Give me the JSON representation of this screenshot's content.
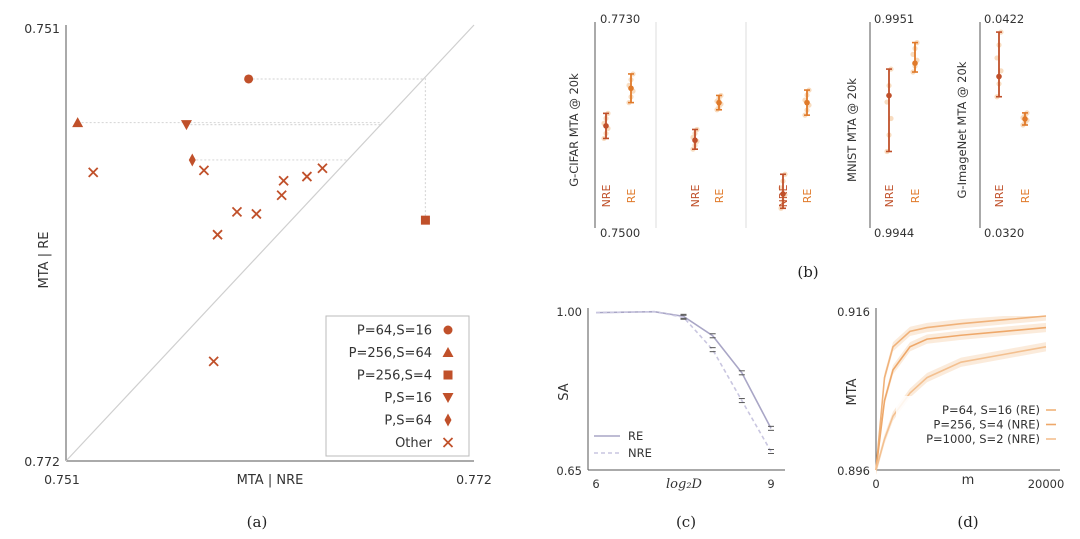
{
  "chart_data": [
    {
      "panel": "(a)",
      "type": "scatter",
      "xlabel": "MTA | NRE",
      "ylabel": "MTA | RE",
      "xlim": [
        0.751,
        0.772
      ],
      "ylim": [
        0.751,
        0.772
      ],
      "x_tick_labels": [
        "0.751",
        "0.772"
      ],
      "y_tick_labels": [
        "0.751",
        "0.772"
      ],
      "legend_position": "bottom-right",
      "series": [
        {
          "name": "P=64,S=16",
          "marker": "circle",
          "points": [
            [
              0.7604,
              0.7694
            ]
          ]
        },
        {
          "name": "P=256,S=64",
          "marker": "triangle-up",
          "points": [
            [
              0.7516,
              0.7673
            ]
          ]
        },
        {
          "name": "P=256,S=4",
          "marker": "square",
          "points": [
            [
              0.7695,
              0.7626
            ]
          ]
        },
        {
          "name": "P,S=16",
          "marker": "triangle-down",
          "points": [
            [
              0.7572,
              0.7672
            ]
          ]
        },
        {
          "name": "P,S=64",
          "marker": "diamond",
          "points": [
            [
              0.7575,
              0.7655
            ]
          ]
        },
        {
          "name": "Other",
          "marker": "x",
          "points": [
            [
              0.7524,
              0.7649
            ],
            [
              0.7581,
              0.765
            ],
            [
              0.7588,
              0.7619
            ],
            [
              0.7598,
              0.763
            ],
            [
              0.7608,
              0.7629
            ],
            [
              0.7621,
              0.7638
            ],
            [
              0.7622,
              0.7645
            ],
            [
              0.7634,
              0.7647
            ],
            [
              0.7642,
              0.7651
            ],
            [
              0.7586,
              0.7558
            ]
          ]
        }
      ],
      "reference_lines": [
        "y = x"
      ],
      "caption": "(a)"
    },
    {
      "panel": "(b)",
      "type": "errorbar",
      "caption": "(b)",
      "subplots": [
        {
          "ylabel": "G-CIFAR MTA @ 20k",
          "y_top_label": "0.7730",
          "y_bottom_label": "0.7500",
          "ylim": [
            0.75,
            0.773
          ],
          "groups": [
            {
              "label": "NRE",
              "mean": 0.7614,
              "low": 0.76,
              "high": 0.7628
            },
            {
              "label": "RE",
              "mean": 0.7656,
              "low": 0.764,
              "high": 0.7672
            },
            {
              "label": "NRE",
              "mean": 0.7598,
              "low": 0.7588,
              "high": 0.761
            },
            {
              "label": "RE",
              "mean": 0.764,
              "low": 0.7632,
              "high": 0.7648
            },
            {
              "label": "NRE",
              "mean": 0.7538,
              "low": 0.7522,
              "high": 0.756
            },
            {
              "label": "RE",
              "mean": 0.764,
              "low": 0.7626,
              "high": 0.7654
            }
          ]
        },
        {
          "ylabel": "MNIST MTA @ 20k",
          "y_top_label": "0.9951",
          "y_bottom_label": "0.9944",
          "ylim": [
            0.9944,
            0.9951
          ],
          "groups": [
            {
              "label": "NRE",
              "mean": 0.99485,
              "low": 0.99466,
              "high": 0.99494
            },
            {
              "label": "RE",
              "mean": 0.99496,
              "low": 0.99493,
              "high": 0.99503
            }
          ]
        },
        {
          "ylabel": "G-ImageNet MTA @ 20k",
          "y_top_label": "0.0422",
          "y_bottom_label": "0.0320",
          "ylim": [
            0.032,
            0.0422
          ],
          "groups": [
            {
              "label": "NRE",
              "mean": 0.0395,
              "low": 0.0385,
              "high": 0.0417
            },
            {
              "label": "RE",
              "mean": 0.0374,
              "low": 0.0371,
              "high": 0.0377
            }
          ]
        }
      ]
    },
    {
      "panel": "(c)",
      "type": "line",
      "xlabel": "log₂D",
      "ylabel": "SA",
      "xlim": [
        6,
        9
      ],
      "ylim": [
        0.65,
        1.0
      ],
      "x_tick_labels": [
        "6",
        "9"
      ],
      "y_tick_labels": [
        "1.00",
        "0.65"
      ],
      "x": [
        6,
        6.5,
        7,
        7.5,
        8,
        8.5,
        9
      ],
      "series": [
        {
          "name": "RE",
          "values": [
            0.99,
            0.991,
            0.992,
            0.982,
            0.94,
            0.86,
            0.74
          ]
        },
        {
          "name": "NRE",
          "values": [
            0.99,
            0.991,
            0.992,
            0.98,
            0.91,
            0.8,
            0.69
          ]
        }
      ],
      "legend_position": "bottom-left",
      "caption": "(c)"
    },
    {
      "panel": "(d)",
      "type": "line",
      "xlabel": "m",
      "ylabel": "MTA",
      "xlim": [
        0,
        20000
      ],
      "ylim": [
        0.896,
        0.916
      ],
      "x_tick_labels": [
        "0",
        "20000"
      ],
      "y_tick_labels": [
        "0.916",
        "0.896"
      ],
      "x": [
        0,
        1000,
        2000,
        4000,
        6000,
        10000,
        15000,
        20000
      ],
      "series": [
        {
          "name": "P=64, S=16 (RE)",
          "values": [
            0.896,
            0.908,
            0.912,
            0.914,
            0.9145,
            0.915,
            0.9155,
            0.916
          ]
        },
        {
          "name": "P=256, S=4 (NRE)",
          "values": [
            0.896,
            0.905,
            0.909,
            0.912,
            0.913,
            0.9135,
            0.914,
            0.9145
          ]
        },
        {
          "name": "P=1000, S=2 (NRE)",
          "values": [
            0.896,
            0.9,
            0.903,
            0.906,
            0.908,
            0.91,
            0.911,
            0.912
          ]
        }
      ],
      "legend_position": "bottom-right",
      "caption": "(d)"
    }
  ],
  "colors": {
    "primary": "#c0502a",
    "orange": "#e07a2a",
    "light_orange": "#f2b077",
    "pale": "#f6d3b0",
    "gray": "#b8b8b8",
    "purple_gray": "#a9a6c6"
  }
}
